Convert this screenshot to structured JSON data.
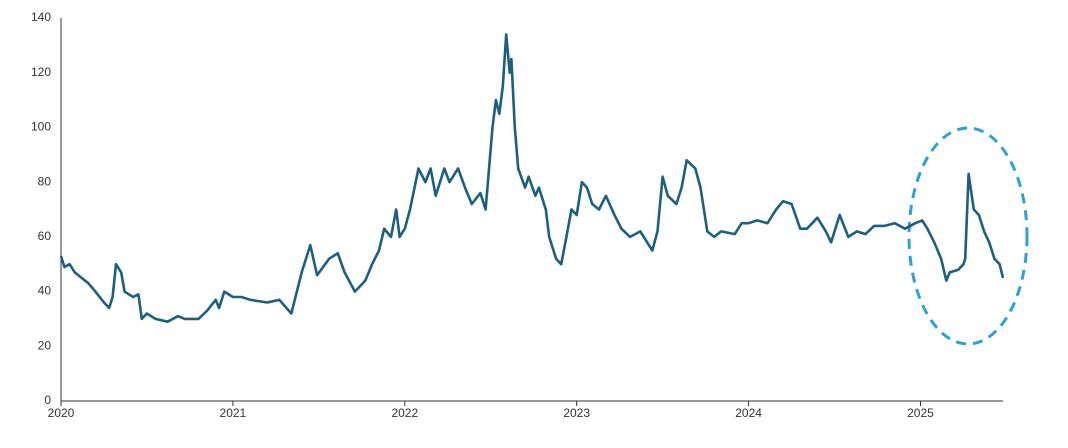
{
  "chart_data": {
    "type": "line",
    "color": "#1d5f7e",
    "grid": false,
    "xlim": [
      2020,
      2025.48
    ],
    "xticks": [
      2020,
      2021,
      2022,
      2023,
      2024,
      2025
    ],
    "ylim": [
      0,
      140
    ],
    "yticks": [
      0,
      20,
      40,
      60,
      80,
      100,
      120,
      140
    ],
    "x": [
      2020.0,
      2020.02,
      2020.05,
      2020.08,
      2020.12,
      2020.16,
      2020.2,
      2020.25,
      2020.28,
      2020.3,
      2020.32,
      2020.35,
      2020.37,
      2020.42,
      2020.45,
      2020.47,
      2020.5,
      2020.55,
      2020.62,
      2020.68,
      2020.72,
      2020.8,
      2020.85,
      2020.9,
      2020.92,
      2020.95,
      2021.0,
      2021.05,
      2021.1,
      2021.2,
      2021.27,
      2021.34,
      2021.4,
      2021.45,
      2021.49,
      2021.56,
      2021.61,
      2021.65,
      2021.71,
      2021.77,
      2021.81,
      2021.85,
      2021.88,
      2021.92,
      2021.95,
      2021.97,
      2022.0,
      2022.03,
      2022.08,
      2022.12,
      2022.15,
      2022.18,
      2022.23,
      2022.26,
      2022.31,
      2022.35,
      2022.39,
      2022.44,
      2022.47,
      2022.51,
      2022.53,
      2022.55,
      2022.57,
      2022.59,
      2022.61,
      2022.62,
      2022.64,
      2022.66,
      2022.7,
      2022.72,
      2022.76,
      2022.78,
      2022.82,
      2022.84,
      2022.88,
      2022.91,
      2022.94,
      2022.97,
      2023.0,
      2023.03,
      2023.06,
      2023.09,
      2023.13,
      2023.17,
      2023.22,
      2023.26,
      2023.31,
      2023.37,
      2023.44,
      2023.47,
      2023.5,
      2023.53,
      2023.58,
      2023.61,
      2023.64,
      2023.69,
      2023.72,
      2023.76,
      2023.8,
      2023.84,
      2023.92,
      2023.96,
      2024.0,
      2024.05,
      2024.11,
      2024.16,
      2024.2,
      2024.25,
      2024.3,
      2024.34,
      2024.4,
      2024.45,
      2024.48,
      2024.53,
      2024.58,
      2024.63,
      2024.68,
      2024.73,
      2024.79,
      2024.85,
      2024.91,
      2024.97,
      2025.01,
      2025.04,
      2025.08,
      2025.12,
      2025.15,
      2025.17,
      2025.22,
      2025.25,
      2025.26,
      2025.28,
      2025.31,
      2025.34,
      2025.37,
      2025.4,
      2025.43,
      2025.46,
      2025.48
    ],
    "values": [
      53,
      49,
      50,
      47,
      45,
      43,
      40,
      36,
      34,
      38,
      50,
      47,
      40,
      38,
      39,
      30,
      32,
      30,
      29,
      31,
      30,
      30,
      33,
      37,
      34,
      40,
      38,
      38,
      37,
      36,
      37,
      32,
      47,
      57,
      46,
      52,
      54,
      47,
      40,
      44,
      50,
      55,
      63,
      60,
      70,
      60,
      63,
      70,
      85,
      80,
      85,
      75,
      85,
      80,
      85,
      78,
      72,
      76,
      70,
      100,
      110,
      105,
      115,
      134,
      120,
      125,
      100,
      85,
      78,
      82,
      75,
      78,
      70,
      60,
      52,
      50,
      60,
      70,
      68,
      80,
      78,
      72,
      70,
      75,
      68,
      63,
      60,
      62,
      55,
      62,
      82,
      75,
      72,
      78,
      88,
      85,
      78,
      62,
      60,
      62,
      61,
      65,
      65,
      66,
      65,
      70,
      73,
      72,
      63,
      63,
      67,
      62,
      58,
      68,
      60,
      62,
      61,
      64,
      64,
      65,
      63,
      65,
      66,
      63,
      58,
      52,
      44,
      47,
      48,
      50,
      52,
      83,
      70,
      68,
      62,
      58,
      52,
      50,
      45
    ]
  }
}
